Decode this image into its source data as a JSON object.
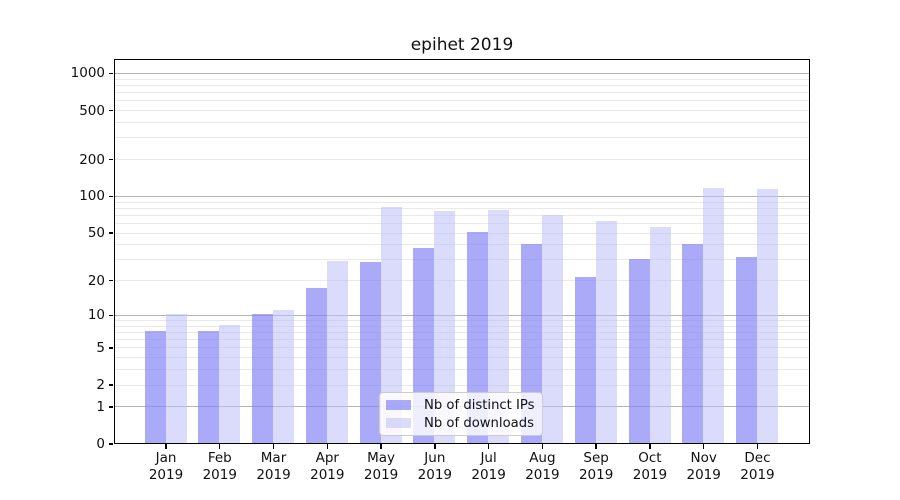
{
  "title": "epihet 2019",
  "chart_data": {
    "type": "bar",
    "title": "epihet 2019",
    "categories": [
      "Jan 2019",
      "Feb 2019",
      "Mar 2019",
      "Apr 2019",
      "May 2019",
      "Jun 2019",
      "Jul 2019",
      "Aug 2019",
      "Sep 2019",
      "Oct 2019",
      "Nov 2019",
      "Dec 2019"
    ],
    "series": [
      {
        "name": "Nb of distinct IPs",
        "color": "rgba(130,130,244,0.68)",
        "values": [
          7,
          7,
          10,
          17,
          28,
          37,
          50,
          40,
          21,
          30,
          40,
          31
        ]
      },
      {
        "name": "Nb of downloads",
        "color": "rgba(190,190,248,0.55)",
        "values": [
          10,
          8,
          11,
          29,
          80,
          74,
          76,
          69,
          62,
          55,
          115,
          113
        ]
      }
    ],
    "xlabel": "",
    "ylabel": "",
    "yscale": "log1p",
    "ylim": [
      0,
      1300
    ],
    "y_ticks": [
      0,
      1,
      2,
      5,
      10,
      20,
      50,
      100,
      200,
      500,
      1000
    ],
    "y_major_gridlines": [
      1,
      10,
      100,
      1000
    ],
    "y_minor_gridlines": [
      2,
      3,
      4,
      5,
      6,
      7,
      8,
      9,
      20,
      30,
      40,
      50,
      60,
      70,
      80,
      90,
      200,
      300,
      400,
      500,
      600,
      700,
      800,
      900
    ],
    "grid": true,
    "legend_position": "lower center"
  },
  "colors": {
    "background": "#ffffff",
    "spine": "#000000",
    "major_grid": "#b3b3b3",
    "minor_grid": "#e9e9e9",
    "text": "#111111",
    "legend_border": "#cccccc"
  }
}
